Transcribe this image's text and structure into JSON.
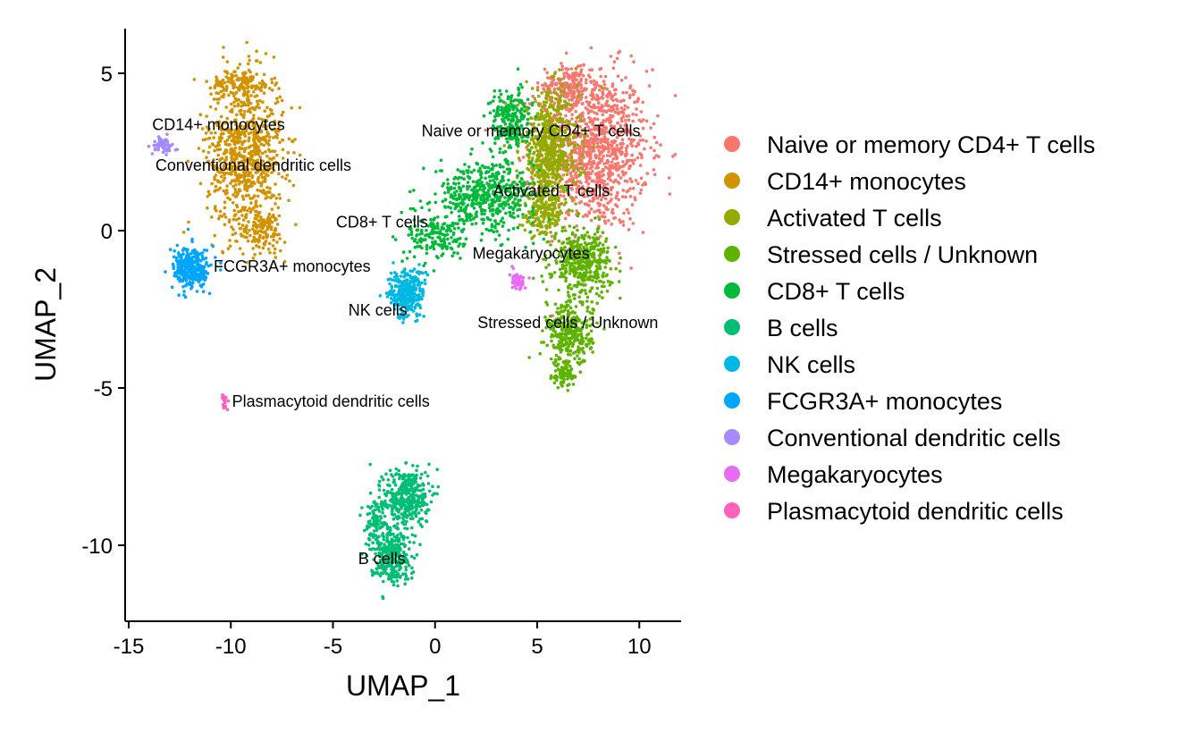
{
  "chart_data": {
    "type": "scatter",
    "xlabel": "UMAP_1",
    "ylabel": "UMAP_2",
    "xlim": [
      -15,
      12
    ],
    "ylim": [
      -12.5,
      6.5
    ],
    "xticks": [
      -15,
      -10,
      -5,
      0,
      5,
      10
    ],
    "yticks": [
      5,
      0,
      -5,
      -10
    ],
    "grid": false,
    "legend_position": "right",
    "series": [
      {
        "name": "Naive or memory CD4+ T cells",
        "color": "#F8766D",
        "label_pos": [
          4.7,
          3.0
        ],
        "blobs": [
          {
            "cx": 7.8,
            "cy": 2.6,
            "sx": 2.4,
            "sy": 2.3,
            "n": 1100
          },
          {
            "cx": 6.5,
            "cy": 4.6,
            "sx": 1.0,
            "sy": 0.6,
            "n": 160
          }
        ]
      },
      {
        "name": "CD14+ monocytes",
        "color": "#D39200",
        "label_pos": [
          -10.6,
          3.2
        ],
        "blobs": [
          {
            "cx": -9.3,
            "cy": 2.5,
            "sx": 1.7,
            "sy": 2.2,
            "n": 800
          },
          {
            "cx": -8.5,
            "cy": 0.0,
            "sx": 1.1,
            "sy": 0.6,
            "n": 130
          },
          {
            "cx": -9.5,
            "cy": 4.7,
            "sx": 1.3,
            "sy": 0.4,
            "n": 120
          }
        ]
      },
      {
        "name": "Activated T cells",
        "color": "#93AA00",
        "label_pos": [
          5.7,
          1.1
        ],
        "blobs": [
          {
            "cx": 5.6,
            "cy": 2.5,
            "sx": 1.3,
            "sy": 1.7,
            "n": 650
          },
          {
            "cx": 5.3,
            "cy": 0.5,
            "sx": 0.9,
            "sy": 0.6,
            "n": 150
          }
        ]
      },
      {
        "name": "Stressed cells / Unknown",
        "color": "#5EB300",
        "label_pos": [
          6.5,
          -3.1
        ],
        "blobs": [
          {
            "cx": 7.2,
            "cy": -1.0,
            "sx": 1.3,
            "sy": 1.0,
            "n": 420
          },
          {
            "cx": 6.6,
            "cy": -3.3,
            "sx": 1.0,
            "sy": 0.9,
            "n": 320
          },
          {
            "cx": 6.3,
            "cy": -4.6,
            "sx": 0.5,
            "sy": 0.35,
            "n": 70
          }
        ]
      },
      {
        "name": "CD8+ T cells",
        "color": "#00BA38",
        "label_pos": [
          -2.6,
          0.1
        ],
        "blobs": [
          {
            "cx": 2.5,
            "cy": 1.1,
            "sx": 2.2,
            "sy": 1.0,
            "n": 520
          },
          {
            "cx": 3.7,
            "cy": 3.5,
            "sx": 0.9,
            "sy": 0.9,
            "n": 230
          },
          {
            "cx": 0.0,
            "cy": -0.2,
            "sx": 1.2,
            "sy": 0.7,
            "n": 160
          }
        ]
      },
      {
        "name": "B cells",
        "color": "#00BF74",
        "label_pos": [
          -2.6,
          -10.6
        ],
        "blobs": [
          {
            "cx": -1.4,
            "cy": -8.5,
            "sx": 1.0,
            "sy": 0.9,
            "n": 380
          },
          {
            "cx": -2.2,
            "cy": -10.3,
            "sx": 0.9,
            "sy": 0.8,
            "n": 300
          },
          {
            "cx": -2.9,
            "cy": -9.2,
            "sx": 0.5,
            "sy": 0.6,
            "n": 90
          }
        ]
      },
      {
        "name": "NK cells",
        "color": "#00B9E3",
        "label_pos": [
          -2.8,
          -2.7
        ],
        "blobs": [
          {
            "cx": -1.4,
            "cy": -2.0,
            "sx": 0.8,
            "sy": 0.7,
            "n": 300
          }
        ]
      },
      {
        "name": "FCGR3A+ monocytes",
        "color": "#00A5FF",
        "label_pos": [
          -7.0,
          -1.3
        ],
        "blobs": [
          {
            "cx": -11.9,
            "cy": -1.2,
            "sx": 0.8,
            "sy": 0.6,
            "n": 320
          }
        ]
      },
      {
        "name": "Conventional dendritic cells",
        "color": "#A58AFF",
        "label_pos": [
          -8.9,
          1.9
        ],
        "blobs": [
          {
            "cx": -13.3,
            "cy": 2.7,
            "sx": 0.5,
            "sy": 0.25,
            "n": 60
          }
        ]
      },
      {
        "name": "Megakaryocytes",
        "color": "#E76BF3",
        "label_pos": [
          4.7,
          -0.9
        ],
        "blobs": [
          {
            "cx": 4.0,
            "cy": -1.6,
            "sx": 0.35,
            "sy": 0.25,
            "n": 55
          }
        ]
      },
      {
        "name": "Plasmacytoid dendritic cells",
        "color": "#FF62BC",
        "label_pos": [
          -5.1,
          -5.6
        ],
        "blobs": [
          {
            "cx": -10.3,
            "cy": -5.4,
            "sx": 0.1,
            "sy": 0.25,
            "n": 22
          }
        ]
      }
    ]
  }
}
